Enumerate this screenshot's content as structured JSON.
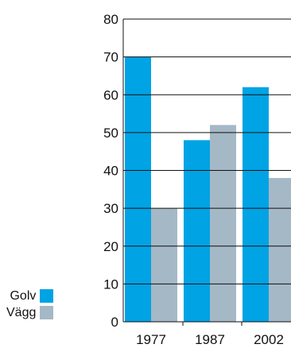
{
  "chart_data": {
    "type": "bar",
    "categories": [
      "1977",
      "1987",
      "2002"
    ],
    "series": [
      {
        "name": "Golv",
        "values": [
          70,
          48,
          62
        ],
        "color": "#00a3e4"
      },
      {
        "name": "Vägg",
        "values": [
          30,
          52,
          38
        ],
        "color": "#a5b8c6"
      }
    ],
    "ylim": [
      0,
      80
    ],
    "yticks": [
      "0",
      "10",
      "20",
      "30",
      "40",
      "50",
      "60",
      "70",
      "80"
    ],
    "grid": true,
    "legend_position": "bottom-left"
  }
}
